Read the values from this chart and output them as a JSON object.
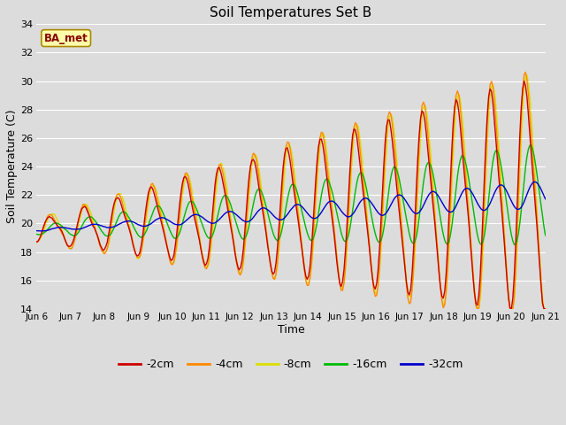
{
  "title": "Soil Temperatures Set B",
  "xlabel": "Time",
  "ylabel": "Soil Temperature (C)",
  "ylim": [
    14,
    34
  ],
  "yticks": [
    14,
    16,
    18,
    20,
    22,
    24,
    26,
    28,
    30,
    32,
    34
  ],
  "background_color": "#dcdcdc",
  "plot_bg_color": "#dcdcdc",
  "legend_labels": [
    "-2cm",
    "-4cm",
    "-8cm",
    "-16cm",
    "-32cm"
  ],
  "line_colors": [
    "#cc0000",
    "#ff8800",
    "#dddd00",
    "#00bb00",
    "#0000cc"
  ],
  "annotation_text": "BA_met",
  "annotation_color": "#880000",
  "annotation_bg": "#ffffaa",
  "annotation_edge": "#aa8800",
  "x_tick_labels": [
    "Jun 6",
    "Jun 7",
    "Jun 8",
    "Jun 9",
    "Jun 10",
    "Jun 11",
    "Jun 12",
    "Jun 13",
    "Jun 14",
    "Jun 15",
    "Jun 16",
    "Jun 17",
    "Jun 18",
    "Jun 19",
    "Jun 20",
    "Jun 21"
  ],
  "num_points": 360,
  "days": 15,
  "figwidth": 6.4,
  "figheight": 4.8,
  "dpi": 100
}
